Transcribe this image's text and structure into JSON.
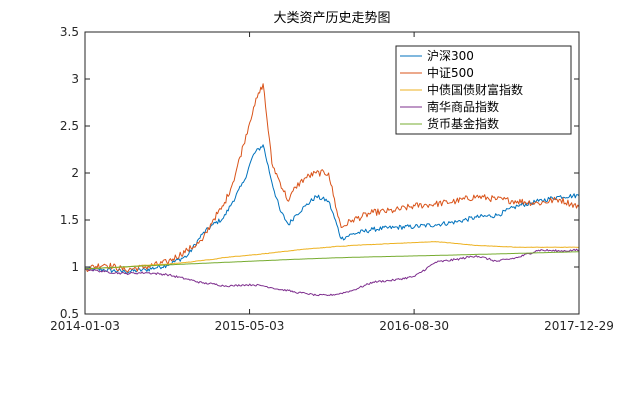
{
  "chart_data": {
    "type": "line",
    "title": "大类资产历史走势图",
    "xlabel": "",
    "ylabel": "",
    "x_ticks": [
      "2014-01-03",
      "2015-05-03",
      "2016-08-30",
      "2017-12-29"
    ],
    "y_ticks": [
      "0.5",
      "1",
      "1.5",
      "2",
      "2.5",
      "3",
      "3.5"
    ],
    "ylim": [
      0.5,
      3.5
    ],
    "xlim": [
      "2014-01-03",
      "2017-12-29"
    ],
    "grid": false,
    "legend_position": "top-right",
    "x": [
      "2014-01-03",
      "2014-03-01",
      "2014-05-01",
      "2014-07-01",
      "2014-09-01",
      "2014-11-01",
      "2014-12-15",
      "2015-01-15",
      "2015-02-15",
      "2015-03-15",
      "2015-04-15",
      "2015-05-15",
      "2015-06-12",
      "2015-07-08",
      "2015-08-01",
      "2015-08-26",
      "2015-09-15",
      "2015-10-15",
      "2015-11-15",
      "2015-12-22",
      "2016-01-15",
      "2016-01-28",
      "2016-03-01",
      "2016-05-01",
      "2016-07-01",
      "2016-09-01",
      "2016-11-01",
      "2017-01-01",
      "2017-03-01",
      "2017-05-01",
      "2017-07-01",
      "2017-09-01",
      "2017-11-01",
      "2017-12-29"
    ],
    "series": [
      {
        "name": "沪深300",
        "color": "#0072BD",
        "values": [
          0.98,
          0.97,
          0.95,
          0.97,
          1.02,
          1.12,
          1.35,
          1.45,
          1.52,
          1.7,
          1.9,
          2.2,
          2.3,
          1.9,
          1.6,
          1.45,
          1.55,
          1.65,
          1.75,
          1.7,
          1.45,
          1.3,
          1.35,
          1.4,
          1.42,
          1.43,
          1.45,
          1.48,
          1.53,
          1.55,
          1.65,
          1.7,
          1.75,
          1.76
        ]
      },
      {
        "name": "中证500",
        "color": "#D95319",
        "values": [
          0.98,
          1.03,
          0.97,
          1.0,
          1.05,
          1.18,
          1.28,
          1.5,
          1.65,
          1.9,
          2.3,
          2.7,
          2.95,
          2.1,
          1.9,
          1.7,
          1.85,
          1.95,
          2.0,
          2.0,
          1.6,
          1.42,
          1.5,
          1.58,
          1.6,
          1.65,
          1.67,
          1.7,
          1.75,
          1.72,
          1.7,
          1.68,
          1.72,
          1.64
        ]
      },
      {
        "name": "中债国债财富指数",
        "color": "#EDB120",
        "values": [
          0.98,
          0.99,
          1.0,
          1.02,
          1.03,
          1.05,
          1.07,
          1.08,
          1.1,
          1.11,
          1.12,
          1.13,
          1.14,
          1.15,
          1.16,
          1.17,
          1.18,
          1.19,
          1.2,
          1.21,
          1.22,
          1.22,
          1.23,
          1.24,
          1.25,
          1.26,
          1.27,
          1.25,
          1.23,
          1.22,
          1.21,
          1.21,
          1.21,
          1.21
        ]
      },
      {
        "name": "南华商品指数",
        "color": "#7E2F8E",
        "values": [
          0.98,
          0.95,
          0.93,
          0.94,
          0.92,
          0.87,
          0.83,
          0.82,
          0.8,
          0.8,
          0.81,
          0.81,
          0.8,
          0.78,
          0.76,
          0.75,
          0.73,
          0.72,
          0.7,
          0.7,
          0.71,
          0.72,
          0.75,
          0.84,
          0.86,
          0.9,
          1.05,
          1.08,
          1.12,
          1.06,
          1.1,
          1.18,
          1.17,
          1.18
        ]
      },
      {
        "name": "货币基金指数",
        "color": "#77AC30",
        "values": [
          0.98,
          0.991,
          1.002,
          1.012,
          1.022,
          1.032,
          1.039,
          1.044,
          1.049,
          1.053,
          1.058,
          1.063,
          1.067,
          1.071,
          1.075,
          1.079,
          1.082,
          1.086,
          1.09,
          1.095,
          1.098,
          1.099,
          1.103,
          1.108,
          1.113,
          1.118,
          1.123,
          1.128,
          1.134,
          1.139,
          1.145,
          1.151,
          1.157,
          1.162
        ]
      }
    ]
  }
}
